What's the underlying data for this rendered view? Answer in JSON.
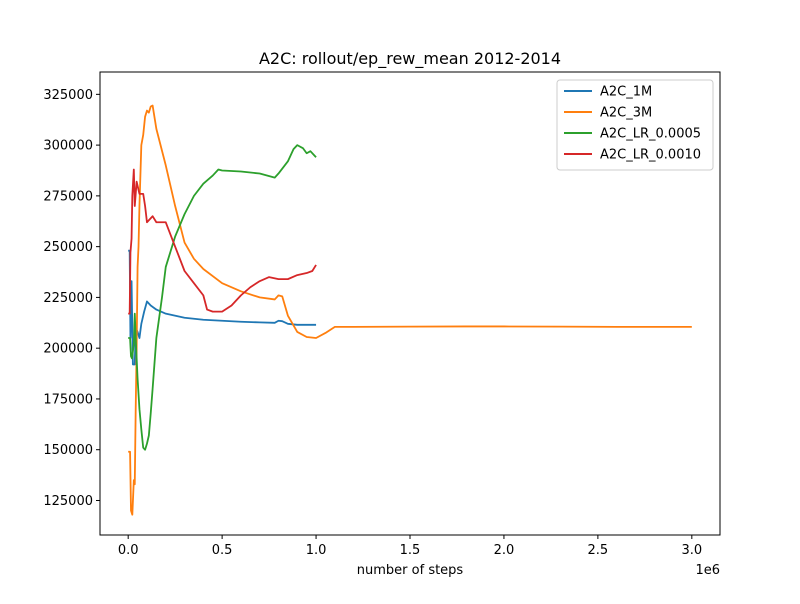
{
  "chart_data": {
    "type": "line",
    "title": "A2C: rollout/ep_rew_mean 2012-2014",
    "xlabel": "number of steps",
    "ylabel": "",
    "x_offset_label": "1e6",
    "xlim": [
      -0.15,
      3.15
    ],
    "ylim": [
      108000,
      336000
    ],
    "xticks": [
      0,
      0.5,
      1.0,
      1.5,
      2.0,
      2.5,
      3.0
    ],
    "xtick_labels": [
      "0.0",
      "0.5",
      "1.0",
      "1.5",
      "2.0",
      "2.5",
      "3.0"
    ],
    "yticks": [
      125000,
      150000,
      175000,
      200000,
      225000,
      250000,
      275000,
      300000,
      325000
    ],
    "ytick_labels": [
      "125000",
      "150000",
      "175000",
      "200000",
      "225000",
      "250000",
      "275000",
      "300000",
      "325000"
    ],
    "grid": false,
    "legend_position": "top-right",
    "series": [
      {
        "name": "A2C_1M",
        "color": "#1f77b4",
        "points": [
          [
            0.0,
            248000
          ],
          [
            0.008,
            248000
          ],
          [
            0.012,
            205000
          ],
          [
            0.018,
            233000
          ],
          [
            0.025,
            192000
          ],
          [
            0.035,
            192000
          ],
          [
            0.04,
            210000
          ],
          [
            0.05,
            208000
          ],
          [
            0.06,
            205000
          ],
          [
            0.07,
            212000
          ],
          [
            0.085,
            218000
          ],
          [
            0.1,
            223000
          ],
          [
            0.12,
            221000
          ],
          [
            0.15,
            219000
          ],
          [
            0.2,
            217000
          ],
          [
            0.3,
            215000
          ],
          [
            0.4,
            214000
          ],
          [
            0.5,
            213500
          ],
          [
            0.6,
            213000
          ],
          [
            0.7,
            212700
          ],
          [
            0.78,
            212500
          ],
          [
            0.8,
            213500
          ],
          [
            0.82,
            213300
          ],
          [
            0.85,
            212000
          ],
          [
            0.9,
            211500
          ],
          [
            0.95,
            211500
          ],
          [
            1.0,
            211500
          ]
        ]
      },
      {
        "name": "A2C_3M",
        "color": "#ff7f0e",
        "points": [
          [
            0.0,
            149000
          ],
          [
            0.01,
            149000
          ],
          [
            0.015,
            120000
          ],
          [
            0.022,
            118000
          ],
          [
            0.03,
            135000
          ],
          [
            0.035,
            133000
          ],
          [
            0.04,
            170000
          ],
          [
            0.045,
            200000
          ],
          [
            0.05,
            240000
          ],
          [
            0.055,
            250000
          ],
          [
            0.06,
            270000
          ],
          [
            0.07,
            300000
          ],
          [
            0.08,
            305000
          ],
          [
            0.09,
            314000
          ],
          [
            0.1,
            317000
          ],
          [
            0.11,
            316000
          ],
          [
            0.12,
            319000
          ],
          [
            0.13,
            319500
          ],
          [
            0.15,
            308000
          ],
          [
            0.2,
            290000
          ],
          [
            0.25,
            270000
          ],
          [
            0.3,
            252000
          ],
          [
            0.35,
            244000
          ],
          [
            0.4,
            239000
          ],
          [
            0.5,
            232000
          ],
          [
            0.6,
            228000
          ],
          [
            0.7,
            225000
          ],
          [
            0.78,
            224000
          ],
          [
            0.8,
            226000
          ],
          [
            0.82,
            225500
          ],
          [
            0.85,
            216000
          ],
          [
            0.9,
            208000
          ],
          [
            0.95,
            205500
          ],
          [
            1.0,
            205000
          ],
          [
            1.05,
            207500
          ],
          [
            1.1,
            210500
          ],
          [
            1.2,
            210500
          ],
          [
            1.5,
            210600
          ],
          [
            1.8,
            210700
          ],
          [
            2.0,
            210700
          ],
          [
            2.3,
            210600
          ],
          [
            2.6,
            210500
          ],
          [
            3.0,
            210500
          ]
        ]
      },
      {
        "name": "A2C_LR_0.0005",
        "color": "#2ca02c",
        "points": [
          [
            0.0,
            205000
          ],
          [
            0.01,
            205000
          ],
          [
            0.015,
            196000
          ],
          [
            0.02,
            195000
          ],
          [
            0.03,
            202000
          ],
          [
            0.035,
            217000
          ],
          [
            0.04,
            205000
          ],
          [
            0.05,
            185000
          ],
          [
            0.06,
            170000
          ],
          [
            0.07,
            160000
          ],
          [
            0.08,
            151000
          ],
          [
            0.09,
            150000
          ],
          [
            0.1,
            153000
          ],
          [
            0.11,
            157000
          ],
          [
            0.12,
            168000
          ],
          [
            0.13,
            180000
          ],
          [
            0.15,
            205000
          ],
          [
            0.18,
            225000
          ],
          [
            0.2,
            240000
          ],
          [
            0.25,
            255000
          ],
          [
            0.3,
            266000
          ],
          [
            0.35,
            275000
          ],
          [
            0.4,
            281000
          ],
          [
            0.45,
            285000
          ],
          [
            0.48,
            288000
          ],
          [
            0.5,
            287500
          ],
          [
            0.6,
            287000
          ],
          [
            0.7,
            286000
          ],
          [
            0.78,
            284000
          ],
          [
            0.8,
            286000
          ],
          [
            0.85,
            292000
          ],
          [
            0.88,
            298000
          ],
          [
            0.9,
            300000
          ],
          [
            0.93,
            298500
          ],
          [
            0.95,
            296000
          ],
          [
            0.97,
            297000
          ],
          [
            0.99,
            295000
          ],
          [
            1.0,
            294000
          ]
        ]
      },
      {
        "name": "A2C_LR_0.0010",
        "color": "#d62728",
        "points": [
          [
            0.0,
            217000
          ],
          [
            0.008,
            217000
          ],
          [
            0.012,
            247000
          ],
          [
            0.018,
            254000
          ],
          [
            0.022,
            275000
          ],
          [
            0.03,
            288000
          ],
          [
            0.035,
            270000
          ],
          [
            0.045,
            282000
          ],
          [
            0.06,
            276000
          ],
          [
            0.08,
            276000
          ],
          [
            0.09,
            270000
          ],
          [
            0.1,
            262000
          ],
          [
            0.12,
            264000
          ],
          [
            0.13,
            265000
          ],
          [
            0.15,
            262000
          ],
          [
            0.2,
            262000
          ],
          [
            0.25,
            250000
          ],
          [
            0.3,
            238000
          ],
          [
            0.35,
            232000
          ],
          [
            0.4,
            226000
          ],
          [
            0.42,
            219000
          ],
          [
            0.45,
            218000
          ],
          [
            0.5,
            218000
          ],
          [
            0.55,
            221000
          ],
          [
            0.6,
            226000
          ],
          [
            0.65,
            230000
          ],
          [
            0.7,
            233000
          ],
          [
            0.75,
            235000
          ],
          [
            0.8,
            234000
          ],
          [
            0.85,
            234000
          ],
          [
            0.9,
            236000
          ],
          [
            0.95,
            237000
          ],
          [
            0.98,
            238000
          ],
          [
            1.0,
            241000
          ]
        ]
      }
    ]
  }
}
